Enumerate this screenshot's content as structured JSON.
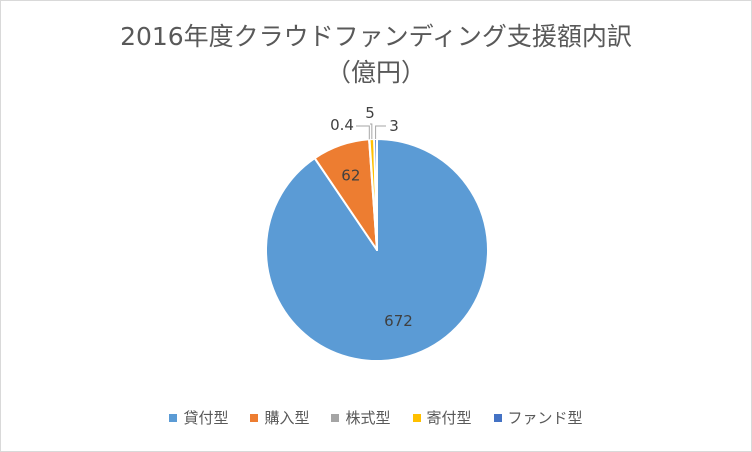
{
  "chart_data": {
    "type": "pie",
    "title_line1": "2016年度クラウドファンディング支援額内訳",
    "title_line2": "（億円）",
    "categories": [
      "貸付型",
      "購入型",
      "株式型",
      "寄付型",
      "ファンド型"
    ],
    "values": [
      672,
      62,
      0.4,
      5,
      3
    ],
    "labels": [
      "672",
      "62",
      "0.4",
      "5",
      "3"
    ],
    "colors": [
      "#5b9bd5",
      "#ed7d31",
      "#a5a5a5",
      "#ffc000",
      "#4472c4"
    ],
    "legend_position": "bottom",
    "start_angle_deg": 0,
    "direction": "clockwise"
  }
}
